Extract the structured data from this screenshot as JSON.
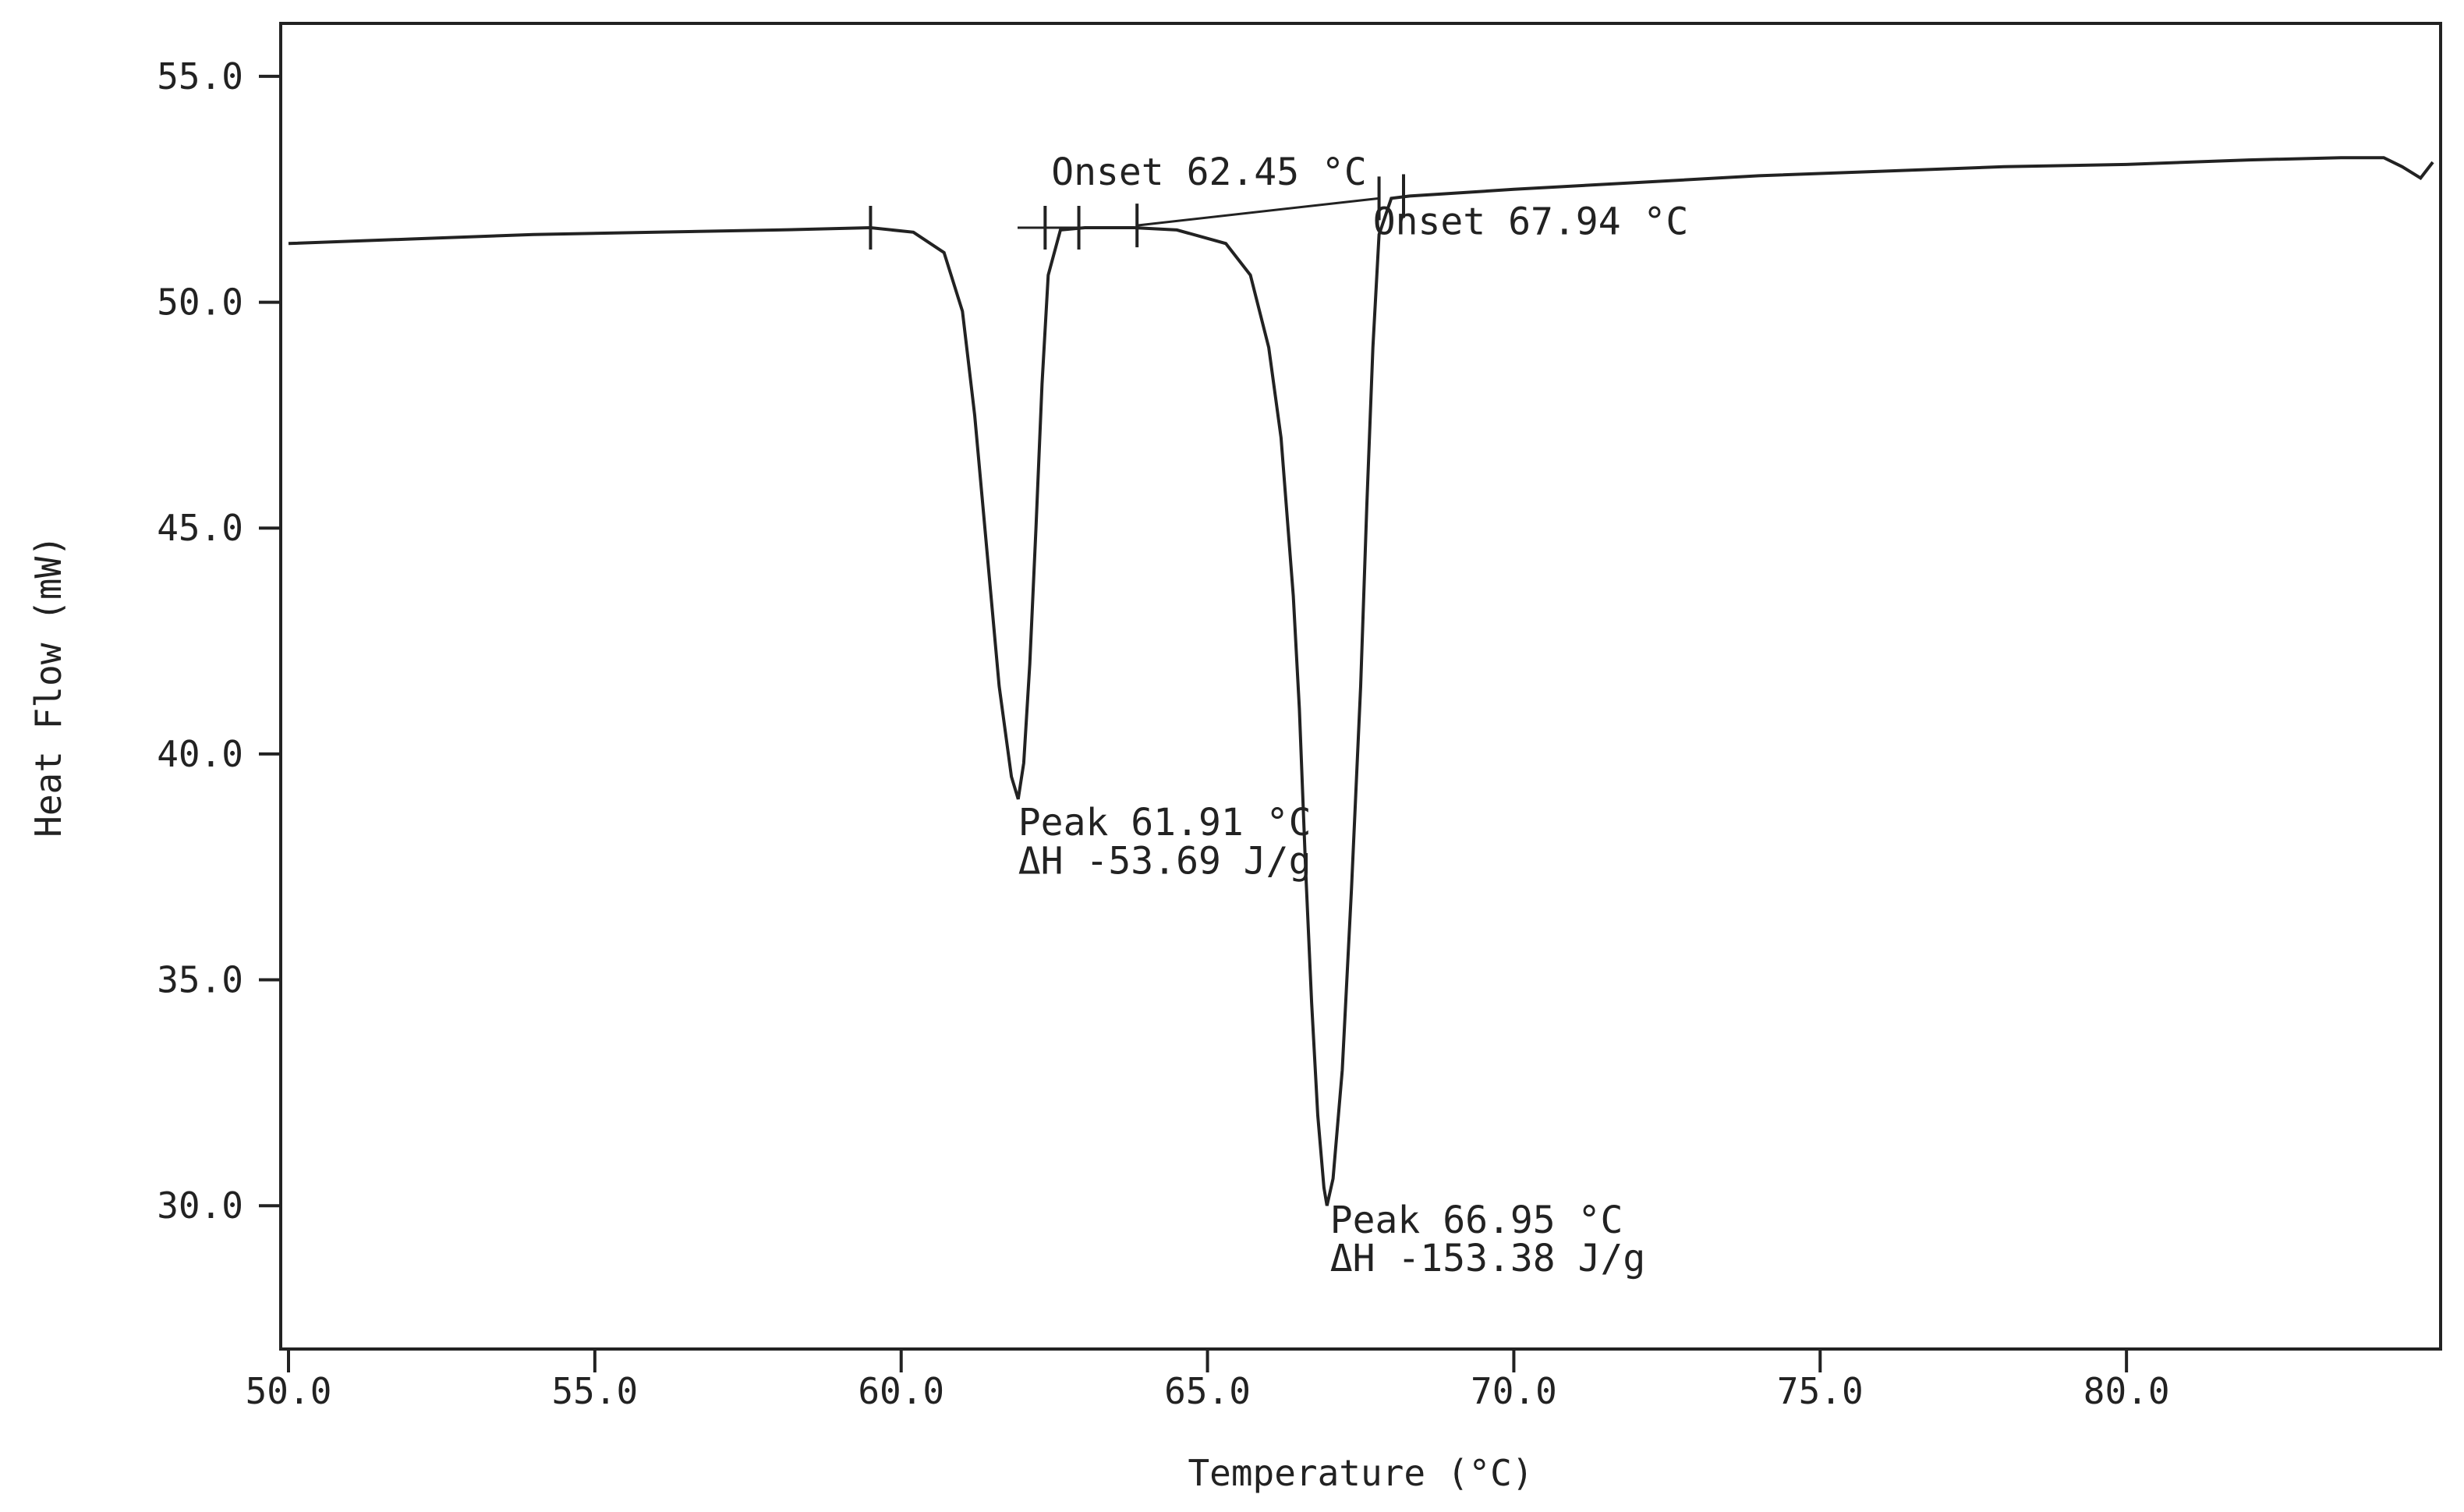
{
  "chart_data": {
    "type": "line",
    "title": "",
    "xlabel": "Temperature (°C)",
    "ylabel": "Heat Flow (mW)",
    "xlim": [
      50.0,
      85.0
    ],
    "ylim": [
      27.0,
      56.0
    ],
    "x_ticks": [
      "50.0",
      "55.0",
      "60.0",
      "65.0",
      "70.0",
      "75.0",
      "80.0"
    ],
    "x_tick_values": [
      50,
      55,
      60,
      65,
      70,
      75,
      80
    ],
    "y_ticks": [
      "30.0",
      "35.0",
      "40.0",
      "45.0",
      "50.0",
      "55.0"
    ],
    "y_tick_values": [
      30,
      35,
      40,
      45,
      50,
      55
    ],
    "grid": false,
    "legend": "none",
    "line_color": "#222222",
    "series": [
      {
        "x": [
          50.0,
          52.0,
          54.0,
          56.0,
          58.0,
          59.5,
          60.2,
          60.7,
          61.0,
          61.2,
          61.4,
          61.6,
          61.8,
          61.91,
          62.0,
          62.1,
          62.2,
          62.3,
          62.4,
          62.6,
          63.0,
          63.8,
          64.5,
          65.3,
          65.7,
          66.0,
          66.2,
          66.4,
          66.5,
          66.6,
          66.7,
          66.8,
          66.9,
          66.95,
          67.05,
          67.2,
          67.35,
          67.5,
          67.6,
          67.7,
          67.8,
          68.0,
          68.3,
          70.0,
          72.0,
          74.0,
          76.0,
          78.0,
          80.0,
          82.0,
          83.5,
          84.2,
          84.5,
          84.8,
          85.0
        ],
        "y": [
          51.3,
          51.4,
          51.5,
          51.55,
          51.6,
          51.65,
          51.55,
          51.1,
          49.8,
          47.5,
          44.5,
          41.5,
          39.5,
          39.0,
          39.8,
          42.0,
          45.0,
          48.2,
          50.6,
          51.6,
          51.65,
          51.65,
          51.6,
          51.3,
          50.6,
          49.0,
          47.0,
          43.5,
          41.0,
          37.5,
          34.5,
          32.0,
          30.4,
          30.0,
          30.6,
          33.0,
          37.0,
          41.5,
          45.5,
          49.0,
          51.5,
          52.3,
          52.35,
          52.5,
          52.65,
          52.8,
          52.9,
          53.0,
          53.05,
          53.15,
          53.2,
          53.2,
          53.0,
          52.75,
          53.1
        ]
      }
    ],
    "baselines": [
      {
        "x": [
          61.9,
          62.9
        ],
        "y": [
          51.65,
          51.65
        ]
      },
      {
        "x": [
          63.85,
          67.8
        ],
        "y": [
          51.7,
          52.3
        ]
      }
    ],
    "limit_marks": [
      {
        "x": 59.5,
        "y": 51.65
      },
      {
        "x": 62.35,
        "y": 51.65
      },
      {
        "x": 62.9,
        "y": 51.65
      },
      {
        "x": 63.85,
        "y": 51.7
      },
      {
        "x": 67.8,
        "y": 52.3
      },
      {
        "x": 68.2,
        "y": 52.35
      }
    ],
    "annotations": [
      {
        "text": "Onset 62.45 °C",
        "x": 62.45,
        "y": 52.6
      },
      {
        "text": "Onset 67.94 °C",
        "x": 67.7,
        "y": 51.5
      },
      {
        "text": "Peak 61.91 °C",
        "x": 61.91,
        "y": 38.2
      },
      {
        "text": "ΔH -53.69 J/g",
        "x": 61.91,
        "y": 37.35
      },
      {
        "text": "Peak 66.95 °C",
        "x": 67.0,
        "y": 29.4
      },
      {
        "text": "ΔH -153.38 J/g",
        "x": 67.0,
        "y": 28.55
      }
    ]
  }
}
